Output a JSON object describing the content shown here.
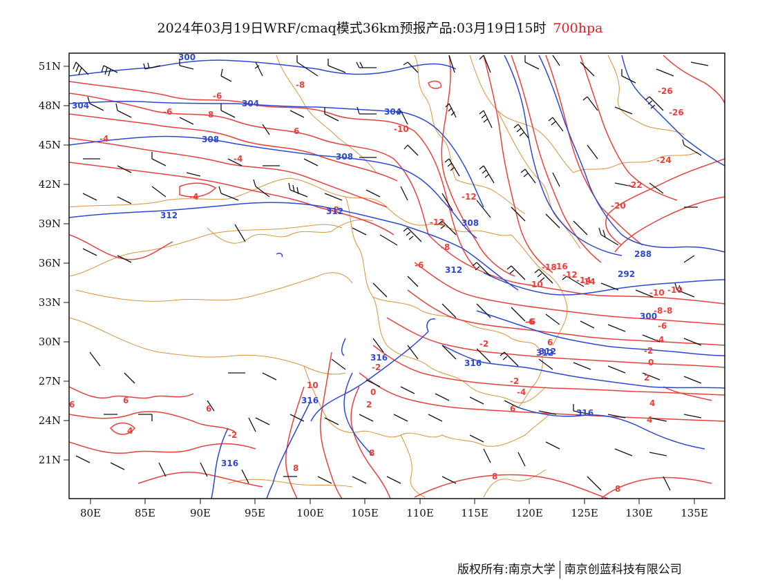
{
  "title": {
    "text": "2024年03月19日WRF/cmaq模式36km预报产品:03月19日15时",
    "level": "700hpa",
    "level_color": "#e02020"
  },
  "axes": {
    "lat_labels": [
      "51N",
      "48N",
      "45N",
      "42N",
      "39N",
      "36N",
      "33N",
      "30N",
      "27N",
      "24N",
      "21N"
    ],
    "lon_labels": [
      "80E",
      "85E",
      "90E",
      "95E",
      "100E",
      "105E",
      "110E",
      "115E",
      "120E",
      "125E",
      "130E",
      "135E"
    ]
  },
  "contours": {
    "temperature_color": "#e8403a",
    "height_color": "#2b47d6",
    "boundary_color": "#d9923b",
    "wind_barb_color": "#111111",
    "temperature_labels": [
      "-6",
      "-8",
      "-6",
      "-8",
      "-4",
      "-6",
      "-4",
      "-10",
      "-4",
      "-2",
      "-12",
      "-16",
      "-14",
      "-12",
      "-10",
      "-8",
      "-8",
      "-6",
      "-6",
      "-26",
      "-26",
      "-24",
      "-22",
      "-20",
      "-18",
      "-12",
      "-14",
      "-10",
      "-10",
      "-8",
      "-6",
      "-4",
      "-2",
      "-2",
      "-2",
      "0",
      "2",
      "0",
      "-2",
      "-4",
      "-6",
      "4",
      "4",
      "6",
      "10",
      "2",
      "6",
      "-2",
      "8",
      "8",
      "8",
      "8",
      "6",
      "4",
      "6",
      "6"
    ],
    "height_labels": [
      "300",
      "304",
      "304",
      "304",
      "308",
      "308",
      "312",
      "312",
      "308",
      "312",
      "316",
      "316",
      "312",
      "316",
      "316",
      "288",
      "292",
      "300",
      "312",
      "316"
    ]
  },
  "footer": {
    "left": "版权所有:南京大学",
    "right": "南京创蓝科技有限公司"
  }
}
